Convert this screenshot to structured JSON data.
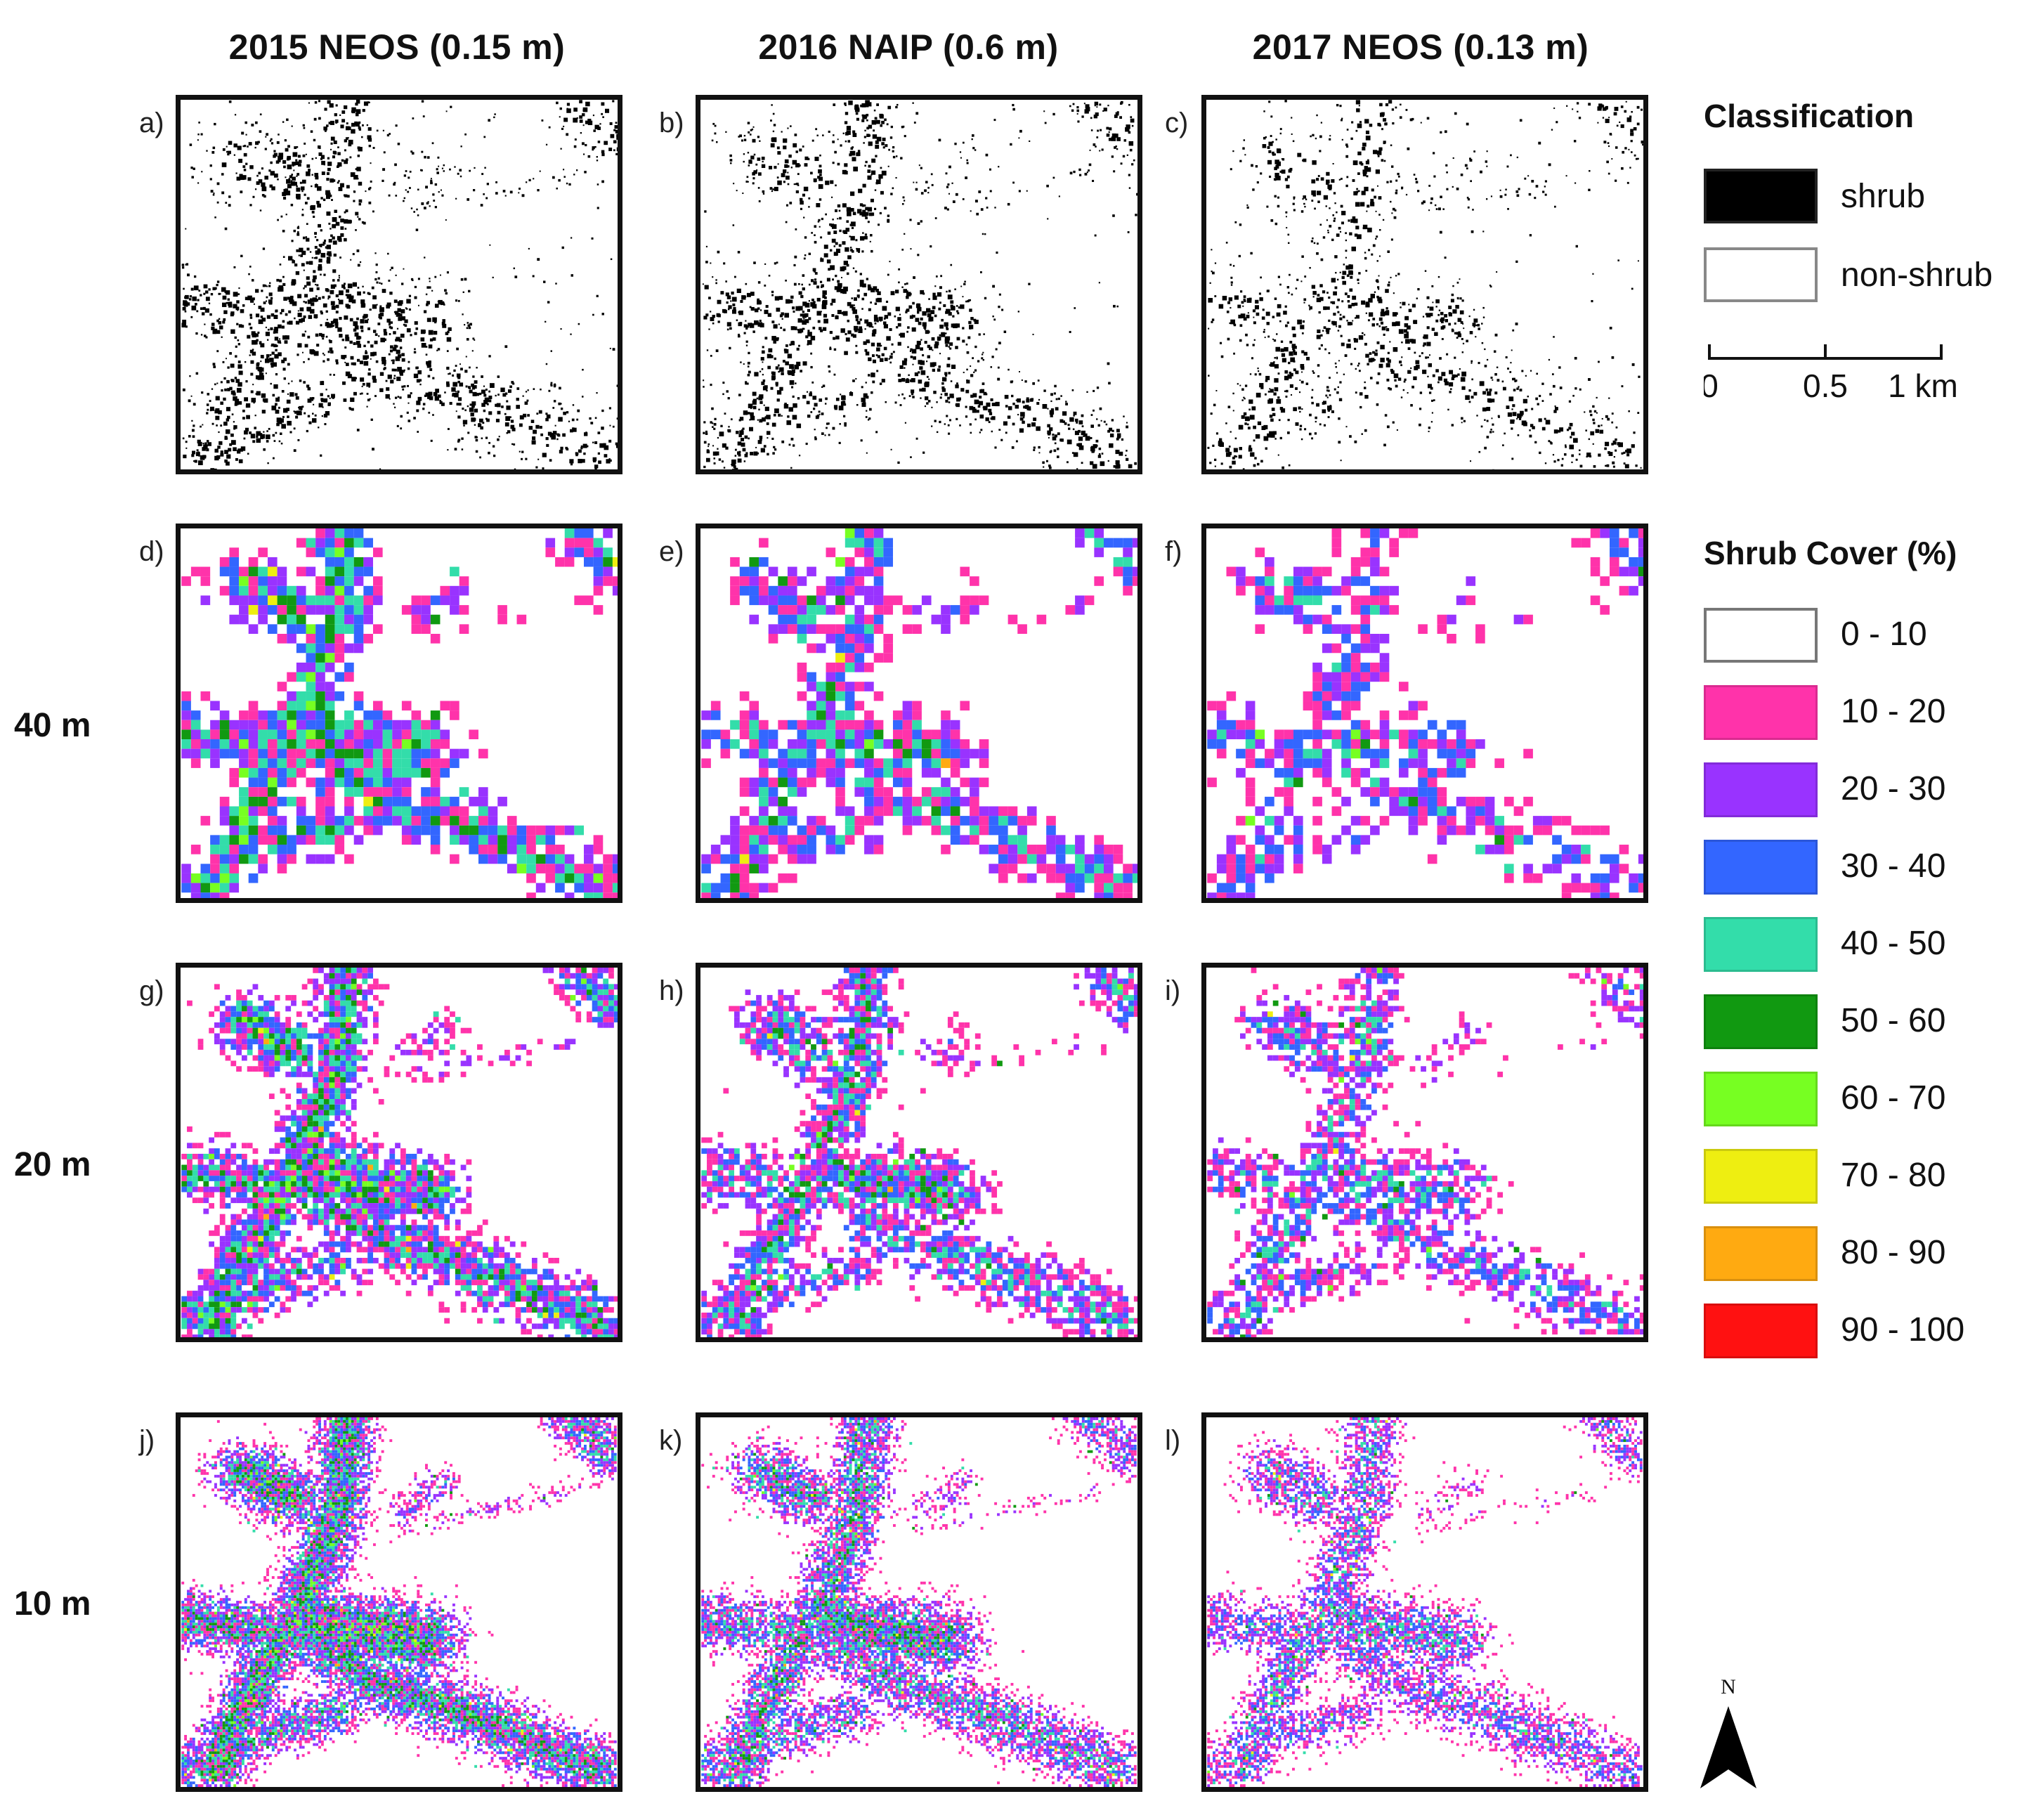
{
  "columns": [
    {
      "title": "2015 NEOS (0.15 m)"
    },
    {
      "title": "2016 NAIP (0.6 m)"
    },
    {
      "title": "2017 NEOS (0.13 m)"
    }
  ],
  "rows": [
    {
      "label": ""
    },
    {
      "label": "40 m"
    },
    {
      "label": "20 m"
    },
    {
      "label": "10 m"
    }
  ],
  "panels": [
    "a)",
    "b)",
    "c)",
    "d)",
    "e)",
    "f)",
    "g)",
    "h)",
    "i)",
    "j)",
    "k)",
    "l)"
  ],
  "legend_classification": {
    "title": "Classification",
    "items": [
      {
        "label": "shrub",
        "color": "#000000"
      },
      {
        "label": "non-shrub",
        "color": "#ffffff"
      }
    ]
  },
  "scale_bar": {
    "ticks": [
      "0",
      "0.5",
      "1 km"
    ]
  },
  "legend_cover": {
    "title": "Shrub Cover (%)",
    "items": [
      {
        "label": "0 - 10",
        "color": "#ffffff"
      },
      {
        "label": "10 - 20",
        "color": "#ff33aa"
      },
      {
        "label": "20 - 30",
        "color": "#9933ff"
      },
      {
        "label": "30 - 40",
        "color": "#3366ff"
      },
      {
        "label": "40 - 50",
        "color": "#33ddaa"
      },
      {
        "label": "50 - 60",
        "color": "#119911"
      },
      {
        "label": "60 - 70",
        "color": "#77ff22"
      },
      {
        "label": "70 - 80",
        "color": "#eeee11"
      },
      {
        "label": "80 - 90",
        "color": "#ffaa11"
      },
      {
        "label": "90 - 100",
        "color": "#ff1111"
      }
    ]
  },
  "north_arrow": {
    "label": "N"
  }
}
